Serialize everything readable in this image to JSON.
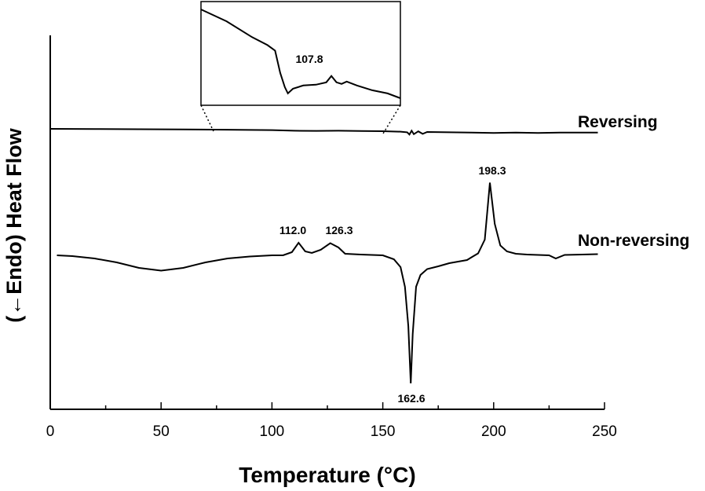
{
  "chart_data": {
    "type": "line",
    "xlabel": "Temperature (°C)",
    "ylabel": "(←Endo) Heat Flow",
    "xlim": [
      0,
      250
    ],
    "x_ticks": [
      "0",
      "50",
      "100",
      "150",
      "200",
      "250"
    ],
    "grid": false,
    "legend": "inline labels at right end of curves",
    "series": [
      {
        "name": "Reversing",
        "x": [
          0,
          20,
          40,
          60,
          80,
          100,
          110,
          120,
          130,
          140,
          150,
          158,
          161,
          162,
          163,
          164,
          166,
          168,
          170,
          180,
          190,
          200,
          210,
          220,
          230,
          240,
          247
        ],
        "y": [
          0.0,
          -0.02,
          -0.06,
          -0.1,
          -0.14,
          -0.2,
          -0.3,
          -0.32,
          -0.3,
          -0.34,
          -0.38,
          -0.45,
          -0.55,
          -0.9,
          -0.3,
          -0.85,
          -0.4,
          -0.8,
          -0.5,
          -0.55,
          -0.6,
          -0.65,
          -0.6,
          -0.65,
          -0.6,
          -0.6,
          -0.6
        ]
      },
      {
        "name": "Non-reversing",
        "x": [
          3,
          10,
          20,
          30,
          40,
          50,
          60,
          70,
          80,
          90,
          100,
          105,
          109,
          112,
          115,
          118,
          122,
          126.3,
          130,
          133,
          140,
          150,
          155,
          158,
          160,
          161.5,
          162.6,
          163.5,
          165,
          167,
          170,
          175,
          180,
          185,
          188,
          190,
          193,
          196,
          198.3,
          200.5,
          203,
          206,
          210,
          215,
          220,
          225,
          228,
          232,
          240,
          247
        ],
        "y": [
          0,
          -0.2,
          -0.8,
          -1.8,
          -3.2,
          -3.9,
          -3.2,
          -1.8,
          -0.8,
          -0.3,
          0,
          0,
          0.8,
          3.2,
          1.0,
          0.6,
          1.4,
          3.1,
          2.0,
          0.4,
          0.2,
          0,
          -1.0,
          -3.0,
          -8.0,
          -18.0,
          -32.6,
          -20.0,
          -8.0,
          -5.0,
          -3.5,
          -2.8,
          -2.0,
          -1.5,
          -1.2,
          -0.5,
          0.5,
          4.0,
          18.5,
          8.0,
          2.5,
          1.0,
          0.4,
          0.2,
          0.1,
          0.0,
          -0.8,
          0.1,
          0.2,
          0.3
        ]
      }
    ],
    "annotations": [
      {
        "series": "Non-reversing",
        "x": 112.0,
        "label": "112.0"
      },
      {
        "series": "Non-reversing",
        "x": 126.3,
        "label": "126.3"
      },
      {
        "series": "Non-reversing",
        "x": 162.6,
        "label": "162.6"
      },
      {
        "series": "Non-reversing",
        "x": 198.3,
        "label": "198.3"
      }
    ],
    "inset": {
      "series": "Reversing",
      "xlim": [
        75,
        153
      ],
      "x": [
        75,
        85,
        95,
        101,
        104,
        106,
        107.8,
        109,
        111,
        115,
        120,
        124,
        126,
        128,
        130,
        132,
        136,
        142,
        148,
        153
      ],
      "y": [
        10,
        8.5,
        6.5,
        5.5,
        4.8,
        2.0,
        0.2,
        -0.6,
        0.0,
        0.4,
        0.5,
        0.8,
        1.6,
        0.8,
        0.6,
        0.9,
        0.4,
        -0.2,
        -0.6,
        -1.2
      ],
      "annotation": {
        "x": 107.8,
        "label": "107.8"
      }
    }
  }
}
